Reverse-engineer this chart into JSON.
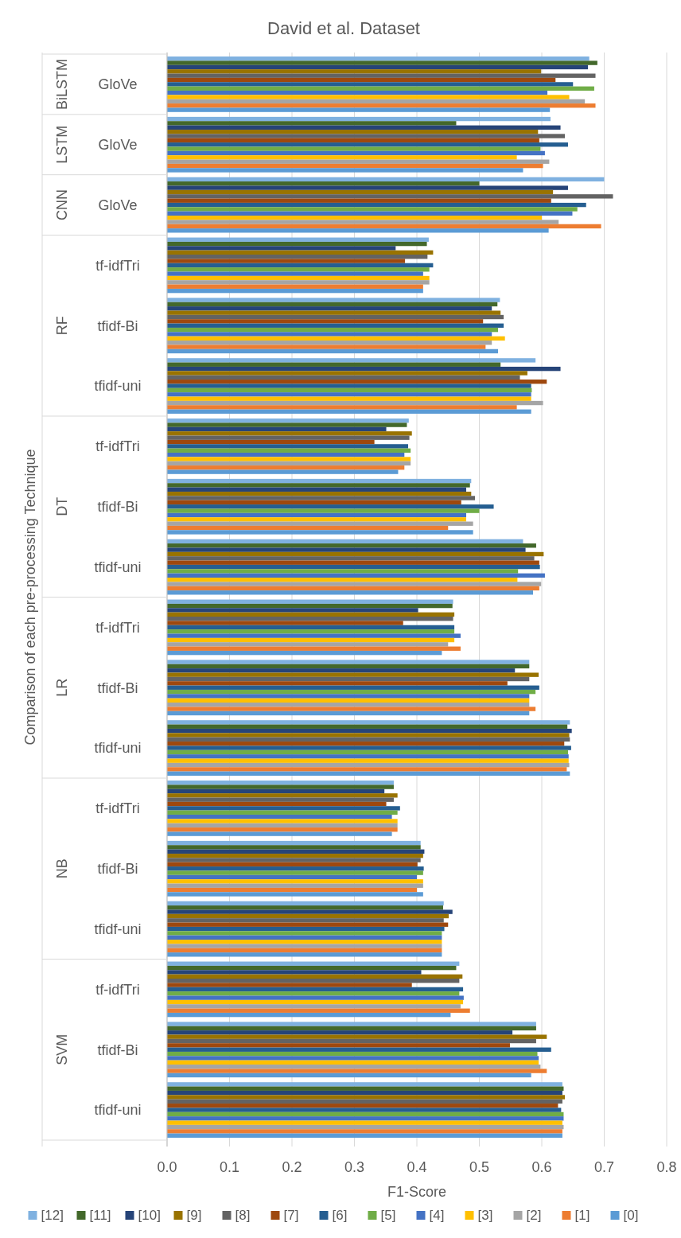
{
  "chart_data": {
    "type": "bar",
    "orientation": "horizontal",
    "title": "David et al. Dataset",
    "xlabel": "F1-Score",
    "ylabel": "Comparison of each pre-processing Technique",
    "categories": [
      "GloVe",
      "GloVe",
      "GloVe",
      "tf-idfTri",
      "tfidf-Bi",
      "tfidf-uni",
      "tf-idfTri",
      "tfidf-Bi",
      "tfidf-uni",
      "tf-idfTri",
      "tfidf-Bi",
      "tfidf-uni",
      "tf-idfTri",
      "tfidf-Bi",
      "tfidf-uni",
      "tf-idfTri",
      "tfidf-Bi",
      "tfidf-uni"
    ],
    "annotations": [
      "BiLSTM",
      "LSTM",
      "CNN",
      "RF",
      "DT",
      "LR",
      "NB",
      "SVM"
    ],
    "xlim": [
      0,
      0.8
    ],
    "xticks": [
      {
        "value": 0,
        "label": "0.0"
      },
      {
        "value": 0.1,
        "label": "0.1"
      },
      {
        "value": 0.2,
        "label": "0.2"
      },
      {
        "value": 0.3,
        "label": "0.3"
      },
      {
        "value": 0.4,
        "label": "0.4"
      },
      {
        "value": 0.5,
        "label": "0.5"
      },
      {
        "value": 0.6,
        "label": "0.6"
      },
      {
        "value": 0.7,
        "label": "0.7"
      },
      {
        "value": 0.8,
        "label": "0.8"
      }
    ],
    "grid": "x",
    "legend": "bottom",
    "series": [
      {
        "name": "[12]",
        "color": "#7fb1e0",
        "values": [
          0.676,
          0.614,
          0.7,
          0.419,
          0.533,
          0.59,
          0.387,
          0.487,
          0.57,
          0.458,
          0.58,
          0.645,
          0.363,
          0.406,
          0.443,
          0.468,
          0.591,
          0.633
        ]
      },
      {
        "name": "[11]",
        "color": "#43682b",
        "values": [
          0.689,
          0.463,
          0.5,
          0.416,
          0.529,
          0.534,
          0.384,
          0.485,
          0.591,
          0.457,
          0.58,
          0.641,
          0.363,
          0.406,
          0.442,
          0.463,
          0.591,
          0.635
        ]
      },
      {
        "name": "[10]",
        "color": "#264478",
        "values": [
          0.674,
          0.63,
          0.642,
          0.366,
          0.52,
          0.63,
          0.351,
          0.479,
          0.574,
          0.402,
          0.557,
          0.648,
          0.348,
          0.412,
          0.457,
          0.407,
          0.553,
          0.633
        ]
      },
      {
        "name": "[9]",
        "color": "#997300",
        "values": [
          0.599,
          0.594,
          0.618,
          0.426,
          0.534,
          0.577,
          0.392,
          0.487,
          0.603,
          0.46,
          0.595,
          0.644,
          0.369,
          0.41,
          0.451,
          0.473,
          0.608,
          0.637
        ]
      },
      {
        "name": "[8]",
        "color": "#636363",
        "values": [
          0.686,
          0.637,
          0.714,
          0.417,
          0.539,
          0.565,
          0.388,
          0.493,
          0.588,
          0.458,
          0.58,
          0.645,
          0.363,
          0.406,
          0.443,
          0.468,
          0.591,
          0.633
        ]
      },
      {
        "name": "[7]",
        "color": "#9e480e",
        "values": [
          0.622,
          0.596,
          0.615,
          0.381,
          0.506,
          0.608,
          0.332,
          0.471,
          0.596,
          0.378,
          0.545,
          0.636,
          0.351,
          0.401,
          0.45,
          0.392,
          0.549,
          0.626
        ]
      },
      {
        "name": "[6]",
        "color": "#255e91",
        "values": [
          0.65,
          0.642,
          0.671,
          0.426,
          0.539,
          0.583,
          0.386,
          0.523,
          0.597,
          0.46,
          0.596,
          0.647,
          0.373,
          0.411,
          0.444,
          0.474,
          0.615,
          0.631
        ]
      },
      {
        "name": "[5]",
        "color": "#70ad47",
        "values": [
          0.684,
          0.598,
          0.657,
          0.42,
          0.53,
          0.584,
          0.39,
          0.5,
          0.562,
          0.46,
          0.59,
          0.642,
          0.369,
          0.41,
          0.44,
          0.468,
          0.593,
          0.635
        ]
      },
      {
        "name": "[4]",
        "color": "#4472c4",
        "values": [
          0.609,
          0.605,
          0.649,
          0.41,
          0.52,
          0.583,
          0.38,
          0.479,
          0.605,
          0.47,
          0.58,
          0.643,
          0.36,
          0.4,
          0.44,
          0.475,
          0.595,
          0.635
        ]
      },
      {
        "name": "[3]",
        "color": "#ffc000",
        "values": [
          0.644,
          0.56,
          0.6,
          0.42,
          0.541,
          0.583,
          0.39,
          0.479,
          0.561,
          0.46,
          0.58,
          0.643,
          0.369,
          0.41,
          0.44,
          0.474,
          0.595,
          0.633
        ]
      },
      {
        "name": "[2]",
        "color": "#a5a5a5",
        "values": [
          0.669,
          0.612,
          0.627,
          0.42,
          0.52,
          0.602,
          0.39,
          0.49,
          0.599,
          0.45,
          0.58,
          0.644,
          0.369,
          0.41,
          0.44,
          0.47,
          0.598,
          0.635
        ]
      },
      {
        "name": "[1]",
        "color": "#ed7d31",
        "values": [
          0.686,
          0.602,
          0.695,
          0.41,
          0.51,
          0.56,
          0.38,
          0.45,
          0.596,
          0.47,
          0.59,
          0.64,
          0.369,
          0.4,
          0.44,
          0.485,
          0.608,
          0.633
        ]
      },
      {
        "name": "[0]",
        "color": "#5b9bd5",
        "values": [
          0.613,
          0.57,
          0.611,
          0.41,
          0.53,
          0.583,
          0.37,
          0.49,
          0.586,
          0.44,
          0.58,
          0.645,
          0.36,
          0.41,
          0.44,
          0.454,
          0.583,
          0.633
        ]
      }
    ]
  }
}
